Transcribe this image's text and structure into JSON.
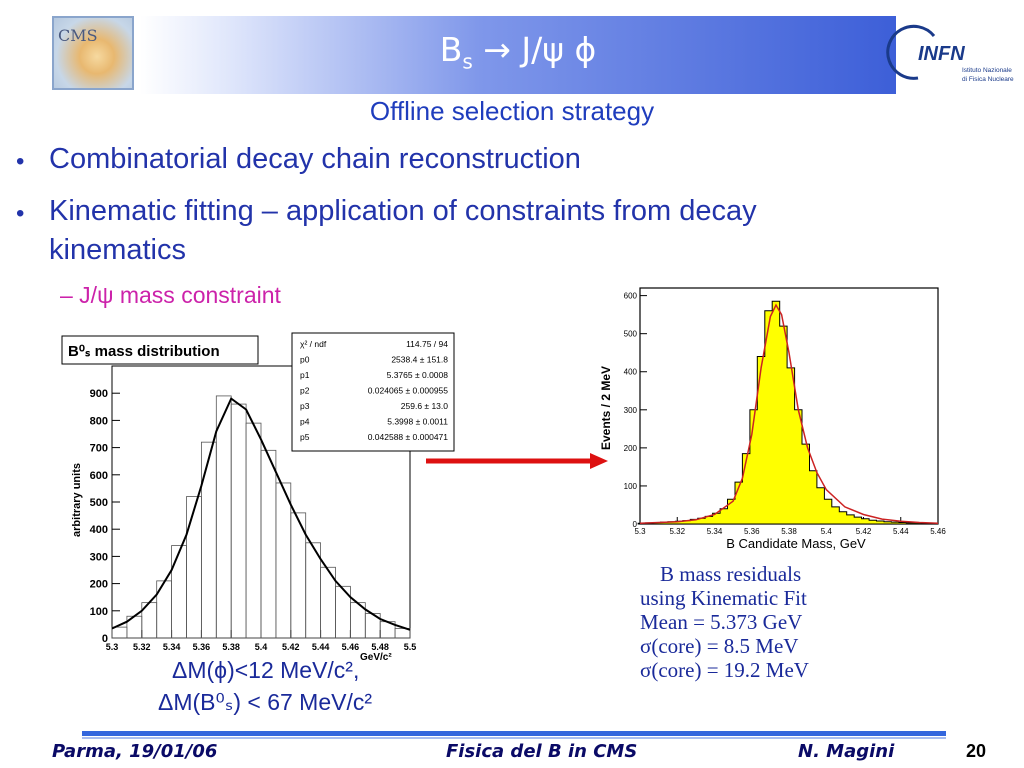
{
  "header": {
    "title_main": "B",
    "title_sub": "s",
    "title_rest": " → J/ψ ϕ",
    "cms_logo_text": "CMS",
    "infn_logo_text": "INFN",
    "infn_logo_line1": "Istituto Nazionale",
    "infn_logo_line2": "di Fisica Nucleare"
  },
  "subtitle": "Offline selection strategy",
  "bullets": [
    {
      "text": "Combinatorial decay chain reconstruction"
    },
    {
      "text": "Kinematic fitting – application of constraints from decay"
    },
    {
      "text": "kinematics"
    }
  ],
  "sub_bullet": "–  J/ψ  mass constraint",
  "left_plot": {
    "title": "B⁰ₛ mass distribution",
    "ylabel": "arbitrary units",
    "xunit": "GeV/c²",
    "stats": [
      {
        "name": "χ² / ndf",
        "value": "114.75 / 94"
      },
      {
        "name": "p0",
        "value": "2538.4 ± 151.8"
      },
      {
        "name": "p1",
        "value": "5.3765 ± 0.0008"
      },
      {
        "name": "p2",
        "value": "0.024065 ± 0.000955"
      },
      {
        "name": "p3",
        "value": "259.6 ± 13.0"
      },
      {
        "name": "p4",
        "value": "5.3998 ± 0.0011"
      },
      {
        "name": "p5",
        "value": "0.042588 ± 0.000471"
      }
    ]
  },
  "right_plot": {
    "ylabel": "Events / 2 MeV",
    "xlabel": "B Candidate Mass, GeV",
    "xlabel_sub": "s"
  },
  "constraints": {
    "line1": "ΔM(ϕ)<12 MeV/c², ",
    "line2": "ΔM(B⁰ₛ) < 67 MeV/c²"
  },
  "residuals": {
    "line1": "B  mass residuals",
    "line1_sub": "s",
    "line2": "using Kinematic Fit",
    "line3": "Mean = 5.373 GeV",
    "line4": "σ(core) = 8.5 MeV",
    "line5": "σ(core) = 19.2 MeV"
  },
  "footer": {
    "left": "Parma, 19/01/06",
    "center": "Fisica del B in CMS",
    "right": "N. Magini",
    "page": "20"
  },
  "colors": {
    "accent": "#1f3dbd",
    "sub_bullet": "#cc22aa",
    "arrow": "#dd1111",
    "hist_fill": "#ffff00",
    "fit_curve": "#cc2222"
  },
  "chart_data": [
    {
      "type": "line",
      "title": "B⁰ₛ mass distribution",
      "xlabel": "GeV/c²",
      "ylabel": "arbitrary units",
      "xlim": [
        5.3,
        5.5
      ],
      "ylim": [
        0,
        1000
      ],
      "x_ticks": [
        5.3,
        5.32,
        5.34,
        5.36,
        5.38,
        5.4,
        5.42,
        5.44,
        5.46,
        5.48,
        5.5
      ],
      "y_ticks": [
        0,
        100,
        200,
        300,
        400,
        500,
        600,
        700,
        800,
        900
      ],
      "series": [
        {
          "name": "histogram",
          "x": [
            5.305,
            5.315,
            5.325,
            5.335,
            5.345,
            5.355,
            5.365,
            5.375,
            5.385,
            5.395,
            5.405,
            5.415,
            5.425,
            5.435,
            5.445,
            5.455,
            5.465,
            5.475,
            5.485,
            5.495
          ],
          "values": [
            40,
            80,
            130,
            210,
            340,
            520,
            720,
            890,
            860,
            790,
            690,
            570,
            460,
            350,
            260,
            190,
            130,
            90,
            60,
            35
          ]
        },
        {
          "name": "fit",
          "x": [
            5.3,
            5.31,
            5.32,
            5.33,
            5.34,
            5.35,
            5.36,
            5.37,
            5.38,
            5.39,
            5.4,
            5.41,
            5.42,
            5.43,
            5.44,
            5.45,
            5.46,
            5.47,
            5.48,
            5.49,
            5.5
          ],
          "values": [
            35,
            60,
            100,
            160,
            250,
            380,
            560,
            760,
            880,
            840,
            730,
            610,
            490,
            380,
            290,
            210,
            150,
            105,
            70,
            48,
            30
          ]
        }
      ]
    },
    {
      "type": "bar",
      "title": "",
      "xlabel": "B Candidate Mass, GeV",
      "ylabel": "Events / 2 MeV",
      "xlim": [
        5.3,
        5.46
      ],
      "ylim": [
        0,
        620
      ],
      "x_ticks": [
        5.3,
        5.32,
        5.34,
        5.36,
        5.38,
        5.4,
        5.42,
        5.44,
        5.46
      ],
      "y_ticks": [
        0,
        100,
        200,
        300,
        400,
        500,
        600
      ],
      "series": [
        {
          "name": "histogram",
          "x": [
            5.301,
            5.305,
            5.309,
            5.313,
            5.317,
            5.321,
            5.325,
            5.329,
            5.333,
            5.337,
            5.341,
            5.345,
            5.349,
            5.353,
            5.357,
            5.361,
            5.365,
            5.369,
            5.373,
            5.377,
            5.381,
            5.385,
            5.389,
            5.393,
            5.397,
            5.401,
            5.405,
            5.409,
            5.413,
            5.417,
            5.421,
            5.425,
            5.429,
            5.433,
            5.437,
            5.441,
            5.445,
            5.449,
            5.453,
            5.457
          ],
          "values": [
            2,
            3,
            4,
            5,
            6,
            7,
            9,
            12,
            15,
            20,
            28,
            40,
            65,
            110,
            185,
            300,
            440,
            560,
            585,
            520,
            410,
            300,
            210,
            140,
            95,
            65,
            45,
            32,
            24,
            18,
            14,
            10,
            8,
            6,
            5,
            4,
            3,
            3,
            2,
            2
          ]
        },
        {
          "name": "fit",
          "x": [
            5.3,
            5.31,
            5.32,
            5.33,
            5.34,
            5.35,
            5.355,
            5.36,
            5.365,
            5.37,
            5.373,
            5.376,
            5.38,
            5.385,
            5.39,
            5.395,
            5.4,
            5.41,
            5.42,
            5.43,
            5.44,
            5.45,
            5.46
          ],
          "values": [
            2,
            4,
            6,
            11,
            25,
            60,
            120,
            235,
            410,
            545,
            575,
            550,
            450,
            300,
            200,
            135,
            90,
            45,
            25,
            13,
            7,
            4,
            2
          ]
        }
      ]
    }
  ]
}
